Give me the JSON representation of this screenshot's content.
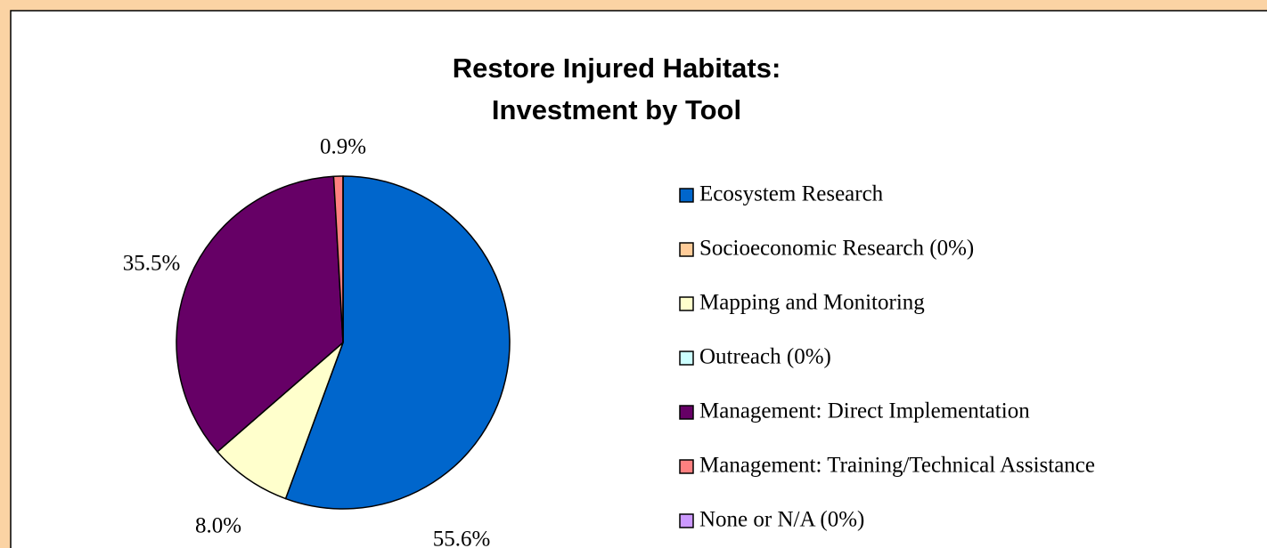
{
  "chart_data": {
    "type": "pie",
    "title": [
      "Restore Injured Habitats:",
      "Investment by Tool"
    ],
    "categories": [
      "Ecosystem Research",
      "Socioeconomic Research (0%)",
      "Mapping and Monitoring",
      "Outreach (0%)",
      "Management: Direct Implementation",
      "Management: Training/Technical Assistance",
      "None or N/A (0%)"
    ],
    "values": [
      55.6,
      0,
      8.0,
      0,
      35.5,
      0.9,
      0
    ],
    "value_labels": [
      "55.6%",
      null,
      "8.0%",
      null,
      "35.5%",
      "0.9%",
      null
    ],
    "colors": [
      "#0066cc",
      "#ffcc99",
      "#ffffcc",
      "#ccffff",
      "#660066",
      "#ff8080",
      "#cc99ff"
    ],
    "legend": "right"
  }
}
